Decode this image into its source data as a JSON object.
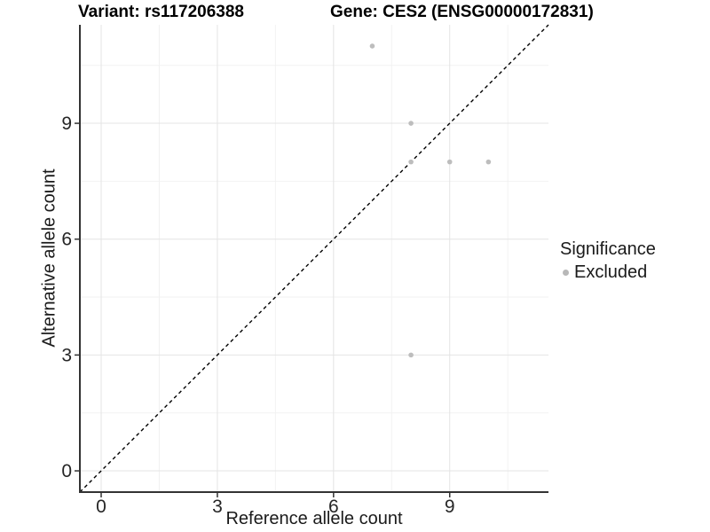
{
  "titles": {
    "left": "Variant: rs117206388",
    "right": "Gene: CES2 (ENSG00000172831)"
  },
  "chart_data": {
    "type": "scatter",
    "xlabel": "Reference allele count",
    "ylabel": "Alternative allele count",
    "xticks": [
      0,
      3,
      6,
      9
    ],
    "yticks": [
      0,
      3,
      6,
      9
    ],
    "minor_ticks": [
      1.5,
      4.5,
      7.5,
      10.5
    ],
    "xlim": [
      -0.55,
      11.55
    ],
    "ylim": [
      -0.55,
      11.55
    ],
    "grid": "on",
    "identity_line": {
      "type": "dashed",
      "slope": 1,
      "intercept": 0,
      "color": "#000000"
    },
    "series": [
      {
        "name": "Excluded",
        "color": "#bdbdbd",
        "points": [
          [
            7,
            11
          ],
          [
            8,
            9
          ],
          [
            8,
            8
          ],
          [
            9,
            8
          ],
          [
            10,
            8
          ],
          [
            8,
            3
          ]
        ]
      }
    ],
    "style": {
      "grid_major": "#e4e4e4",
      "grid_minor": "#f2f2f2",
      "axis_color": "#333333",
      "tick_label_color": "#262626",
      "point_radius": 2.8
    }
  },
  "legend": {
    "title": "Significance",
    "items": [
      {
        "label": "Excluded",
        "color": "#b8b8b8"
      }
    ]
  }
}
